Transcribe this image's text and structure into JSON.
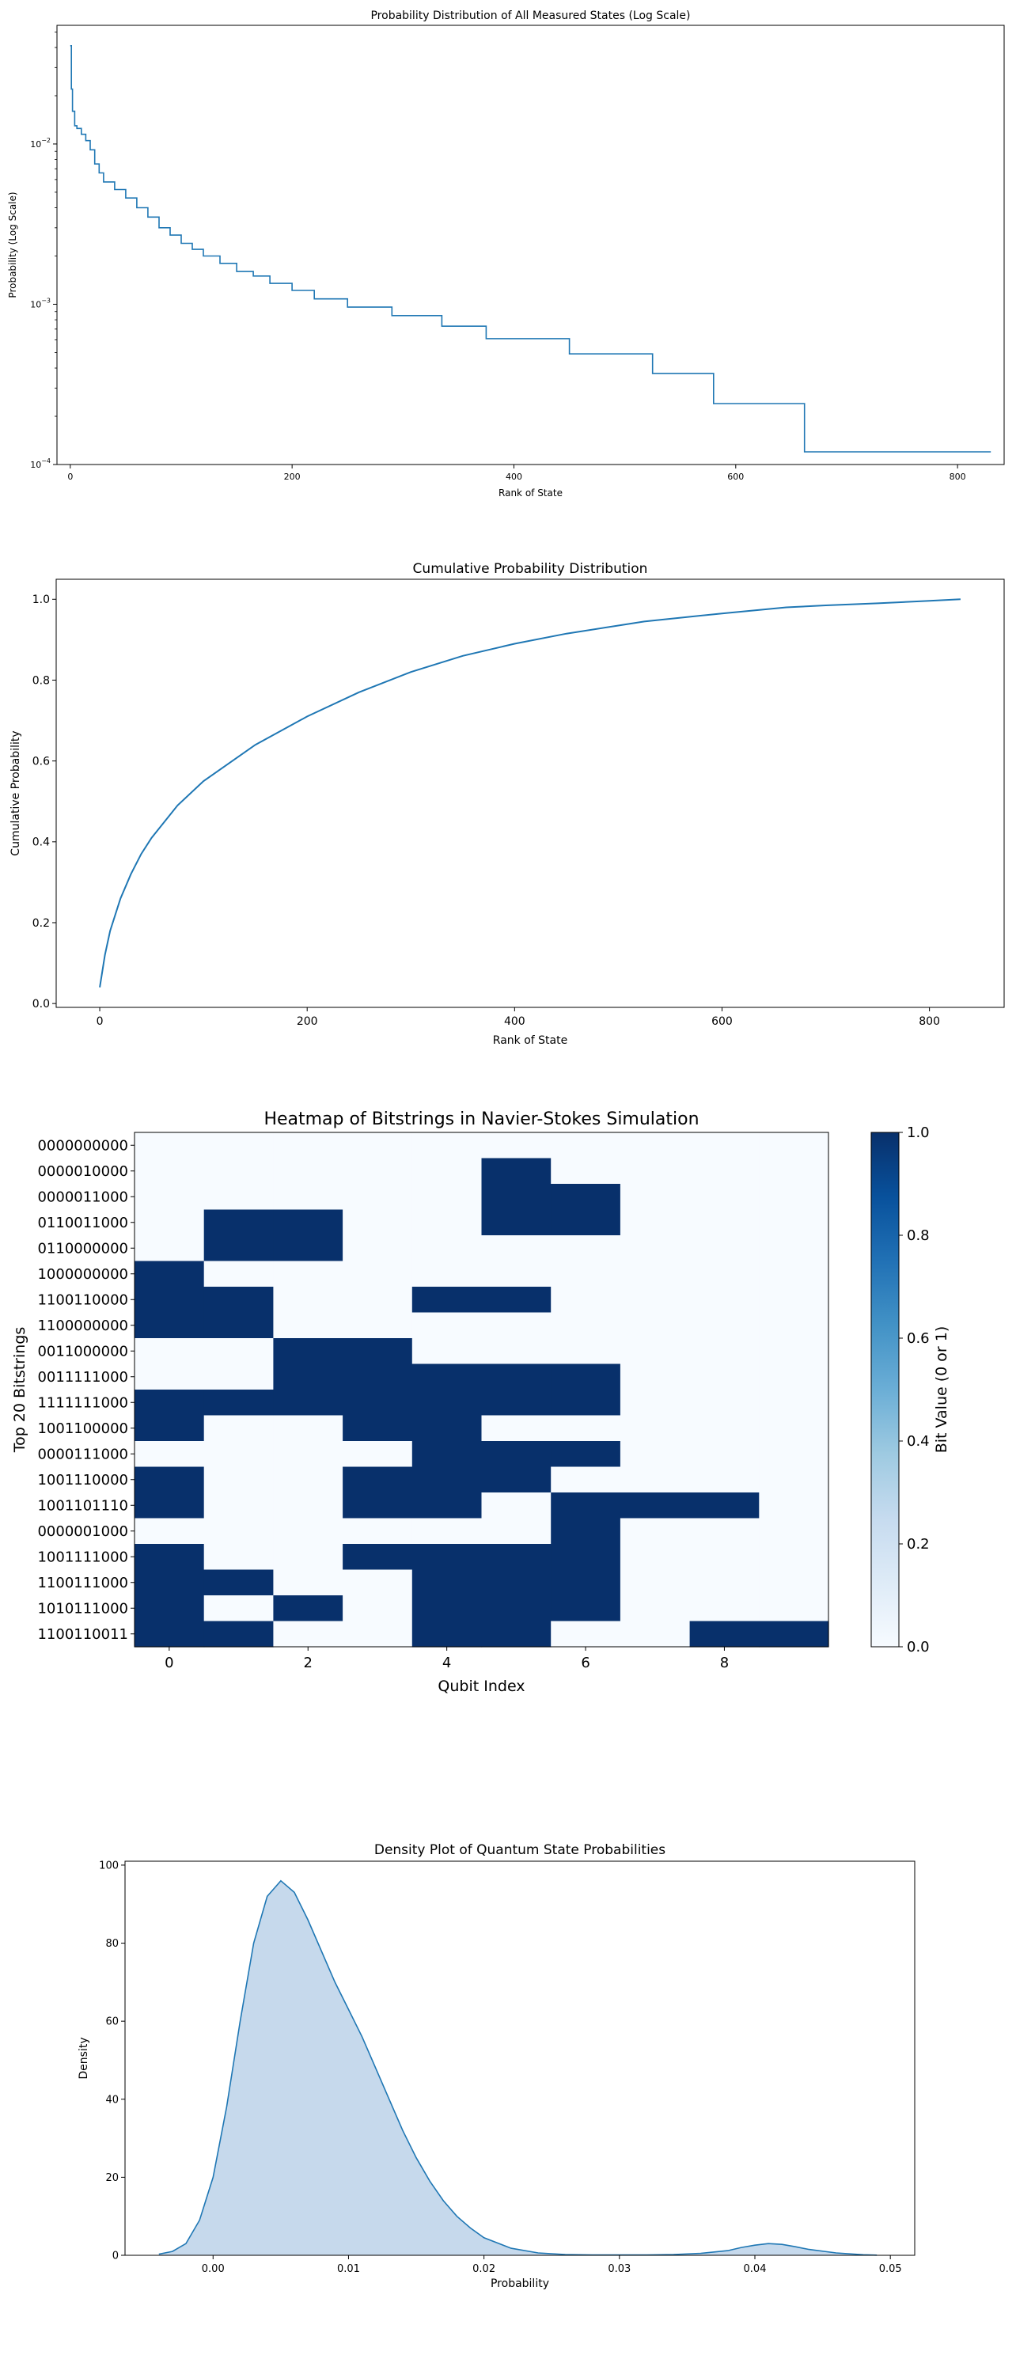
{
  "chart_data": [
    {
      "type": "line",
      "title": "Probability Distribution of All Measured States (Log Scale)",
      "xlabel": "Rank of State",
      "ylabel": "Probability (Log Scale)",
      "yscale": "log",
      "xlim": [
        -12,
        842
      ],
      "ylim": [
        0.0001,
        0.055
      ],
      "xticks": [
        0,
        200,
        400,
        600,
        800
      ],
      "xtick_labels": [
        "0",
        "200",
        "400",
        "600",
        "800"
      ],
      "ytick_labels": [
        {
          "base": "10",
          "exp": "−4",
          "value": 0.0001
        },
        {
          "base": "10",
          "exp": "−3",
          "value": 0.001
        },
        {
          "base": "10",
          "exp": "−2",
          "value": 0.01
        }
      ],
      "color": "#1f77b4",
      "grid": false,
      "series": [
        {
          "x": [
            0,
            1,
            2,
            4,
            6,
            10,
            14,
            18,
            22,
            26,
            30,
            40,
            50,
            60,
            70,
            80,
            90,
            100,
            110,
            120,
            135,
            150,
            165,
            180,
            200,
            220,
            250,
            290,
            335,
            375,
            450,
            525,
            580,
            620,
            662,
            700,
            750,
            800,
            830
          ],
          "y": [
            0.041,
            0.022,
            0.016,
            0.013,
            0.0125,
            0.0115,
            0.0105,
            0.0092,
            0.0075,
            0.0066,
            0.0058,
            0.0052,
            0.0046,
            0.004,
            0.0035,
            0.003,
            0.0027,
            0.0024,
            0.0022,
            0.002,
            0.0018,
            0.0016,
            0.0015,
            0.00135,
            0.00122,
            0.00108,
            0.00096,
            0.00085,
            0.00073,
            0.00061,
            0.00049,
            0.00037,
            0.00024,
            0.00024,
            0.00012,
            0.00012,
            0.00012,
            0.00012,
            0.00012
          ]
        }
      ]
    },
    {
      "type": "line",
      "title": "Cumulative Probability Distribution",
      "xlabel": "Rank of State",
      "ylabel": "Cumulative Probability",
      "xlim": [
        -42,
        872
      ],
      "ylim": [
        -0.0095,
        1.0495
      ],
      "xticks": [
        0,
        200,
        400,
        600,
        800
      ],
      "xtick_labels": [
        "0",
        "200",
        "400",
        "600",
        "800"
      ],
      "yticks": [
        0.0,
        0.2,
        0.4,
        0.6,
        0.8,
        1.0
      ],
      "ytick_labels": [
        "0.0",
        "0.2",
        "0.4",
        "0.6",
        "0.8",
        "1.0"
      ],
      "color": "#1f77b4",
      "grid": false,
      "series": [
        {
          "x": [
            0,
            5,
            10,
            20,
            30,
            40,
            50,
            75,
            100,
            150,
            200,
            250,
            300,
            350,
            400,
            450,
            500,
            525,
            600,
            662,
            700,
            750,
            800,
            830
          ],
          "y": [
            0.04,
            0.12,
            0.18,
            0.26,
            0.32,
            0.37,
            0.41,
            0.49,
            0.55,
            0.64,
            0.71,
            0.77,
            0.82,
            0.86,
            0.89,
            0.915,
            0.935,
            0.945,
            0.965,
            0.98,
            0.985,
            0.99,
            0.996,
            1.0
          ]
        }
      ]
    },
    {
      "type": "heatmap",
      "title": "Heatmap of Bitstrings in Navier-Stokes Simulation",
      "xlabel": "Qubit Index",
      "ylabel": "Top 20 Bitstrings",
      "xticks": [
        0,
        2,
        4,
        6,
        8
      ],
      "xtick_labels": [
        "0",
        "2",
        "4",
        "6",
        "8"
      ],
      "rows": [
        "0000000000",
        "0000010000",
        "0000011000",
        "0110011000",
        "0110000000",
        "1000000000",
        "1100110000",
        "1100000000",
        "0011000000",
        "0011111000",
        "1111111000",
        "1001100000",
        "0000111000",
        "1001110000",
        "1001101110",
        "0000001000",
        "1001111000",
        "1100111000",
        "1010111000",
        "1100110011"
      ],
      "colormap": "Blues",
      "color_low": "#f7fbff",
      "color_high": "#08306b",
      "colorbar": {
        "label": "Bit Value (0 or 1)",
        "range": [
          0.0,
          1.0
        ],
        "ticks": [
          0.0,
          0.2,
          0.4,
          0.6,
          0.8,
          1.0
        ],
        "tick_labels": [
          "0.0",
          "0.2",
          "0.4",
          "0.6",
          "0.8",
          "1.0"
        ]
      }
    },
    {
      "type": "area",
      "title": "Density Plot of Quantum State Probabilities",
      "xlabel": "Probability",
      "ylabel": "Density",
      "xlim": [
        -0.0065,
        0.0518
      ],
      "ylim": [
        0,
        101
      ],
      "xticks": [
        0.0,
        0.01,
        0.02,
        0.03,
        0.04,
        0.05
      ],
      "xtick_labels": [
        "0.00",
        "0.01",
        "0.02",
        "0.03",
        "0.04",
        "0.05"
      ],
      "yticks": [
        0,
        20,
        40,
        60,
        80,
        100
      ],
      "ytick_labels": [
        "0",
        "20",
        "40",
        "60",
        "80",
        "100"
      ],
      "line_color": "#1f77b4",
      "fill_color": "#c6d9ec",
      "series": [
        {
          "x": [
            -0.004,
            -0.003,
            -0.002,
            -0.001,
            0.0,
            0.001,
            0.002,
            0.003,
            0.004,
            0.005,
            0.006,
            0.007,
            0.008,
            0.009,
            0.01,
            0.011,
            0.012,
            0.013,
            0.014,
            0.015,
            0.016,
            0.017,
            0.018,
            0.019,
            0.02,
            0.022,
            0.024,
            0.026,
            0.028,
            0.03,
            0.032,
            0.034,
            0.036,
            0.038,
            0.039,
            0.04,
            0.041,
            0.042,
            0.043,
            0.044,
            0.046,
            0.048,
            0.049
          ],
          "y": [
            0.3,
            1.0,
            3.0,
            9.0,
            20.0,
            38.0,
            60.0,
            80.0,
            92.0,
            96.0,
            93.0,
            86.0,
            78.0,
            70.0,
            63.0,
            56.0,
            48.0,
            40.0,
            32.0,
            25.0,
            19.0,
            14.0,
            10.0,
            7.0,
            4.5,
            1.8,
            0.6,
            0.2,
            0.1,
            0.1,
            0.1,
            0.2,
            0.5,
            1.2,
            2.0,
            2.6,
            3.0,
            2.8,
            2.2,
            1.5,
            0.6,
            0.15,
            0.05
          ]
        }
      ]
    }
  ]
}
